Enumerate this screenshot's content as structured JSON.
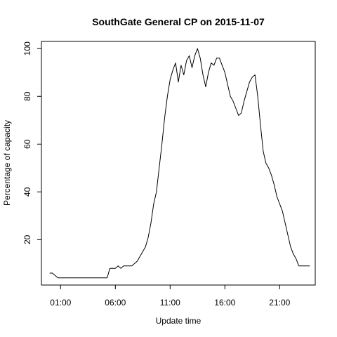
{
  "chart_data": {
    "type": "line",
    "title": "SouthGate General CP on 2015-11-07",
    "xlabel": "Update time",
    "ylabel": "Percentage of capacity",
    "x_unit": "hours",
    "xlim": [
      -0.75,
      24.25
    ],
    "ylim": [
      1,
      103
    ],
    "x_ticks": [
      {
        "value": 1,
        "label": "01:00"
      },
      {
        "value": 6,
        "label": "06:00"
      },
      {
        "value": 11,
        "label": "11:00"
      },
      {
        "value": 16,
        "label": "16:00"
      },
      {
        "value": 21,
        "label": "21:00"
      }
    ],
    "y_ticks": [
      20,
      40,
      60,
      80,
      100
    ],
    "grid": false,
    "legend": "none",
    "series": [
      {
        "color": "#000000",
        "x": [
          0.0,
          0.25,
          0.5,
          0.75,
          1.0,
          2.0,
          3.0,
          4.0,
          5.0,
          5.25,
          5.5,
          5.75,
          6.0,
          6.25,
          6.5,
          6.75,
          7.0,
          7.25,
          7.5,
          7.75,
          8.0,
          8.25,
          8.5,
          8.75,
          9.0,
          9.25,
          9.5,
          9.75,
          10.0,
          10.25,
          10.5,
          10.75,
          11.0,
          11.25,
          11.5,
          11.75,
          12.0,
          12.25,
          12.5,
          12.75,
          13.0,
          13.25,
          13.5,
          13.75,
          14.0,
          14.25,
          14.5,
          14.75,
          15.0,
          15.25,
          15.5,
          15.75,
          16.0,
          16.25,
          16.5,
          16.75,
          17.0,
          17.25,
          17.5,
          17.75,
          18.0,
          18.25,
          18.5,
          18.75,
          19.0,
          19.25,
          19.5,
          19.75,
          20.0,
          20.25,
          20.5,
          20.75,
          21.0,
          21.25,
          21.5,
          21.75,
          22.0,
          22.25,
          22.5,
          22.75,
          23.0,
          23.25,
          23.5,
          23.75
        ],
        "y": [
          6,
          6,
          5,
          4,
          4,
          4,
          4,
          4,
          4,
          4,
          8,
          8,
          8,
          9,
          8,
          9,
          9,
          9,
          9,
          10,
          11,
          13,
          15,
          17,
          21,
          27,
          35,
          40,
          50,
          60,
          71,
          80,
          87,
          91,
          94,
          86,
          93,
          89,
          95,
          97,
          92,
          97,
          100,
          96,
          89,
          84,
          90,
          94,
          93,
          96,
          96,
          93,
          90,
          85,
          80,
          78,
          75,
          72,
          73,
          78,
          82,
          86,
          88,
          89,
          80,
          68,
          57,
          52,
          50,
          47,
          43,
          38,
          35,
          32,
          27,
          22,
          17,
          14,
          12,
          9,
          9,
          9,
          9,
          9
        ]
      }
    ]
  }
}
